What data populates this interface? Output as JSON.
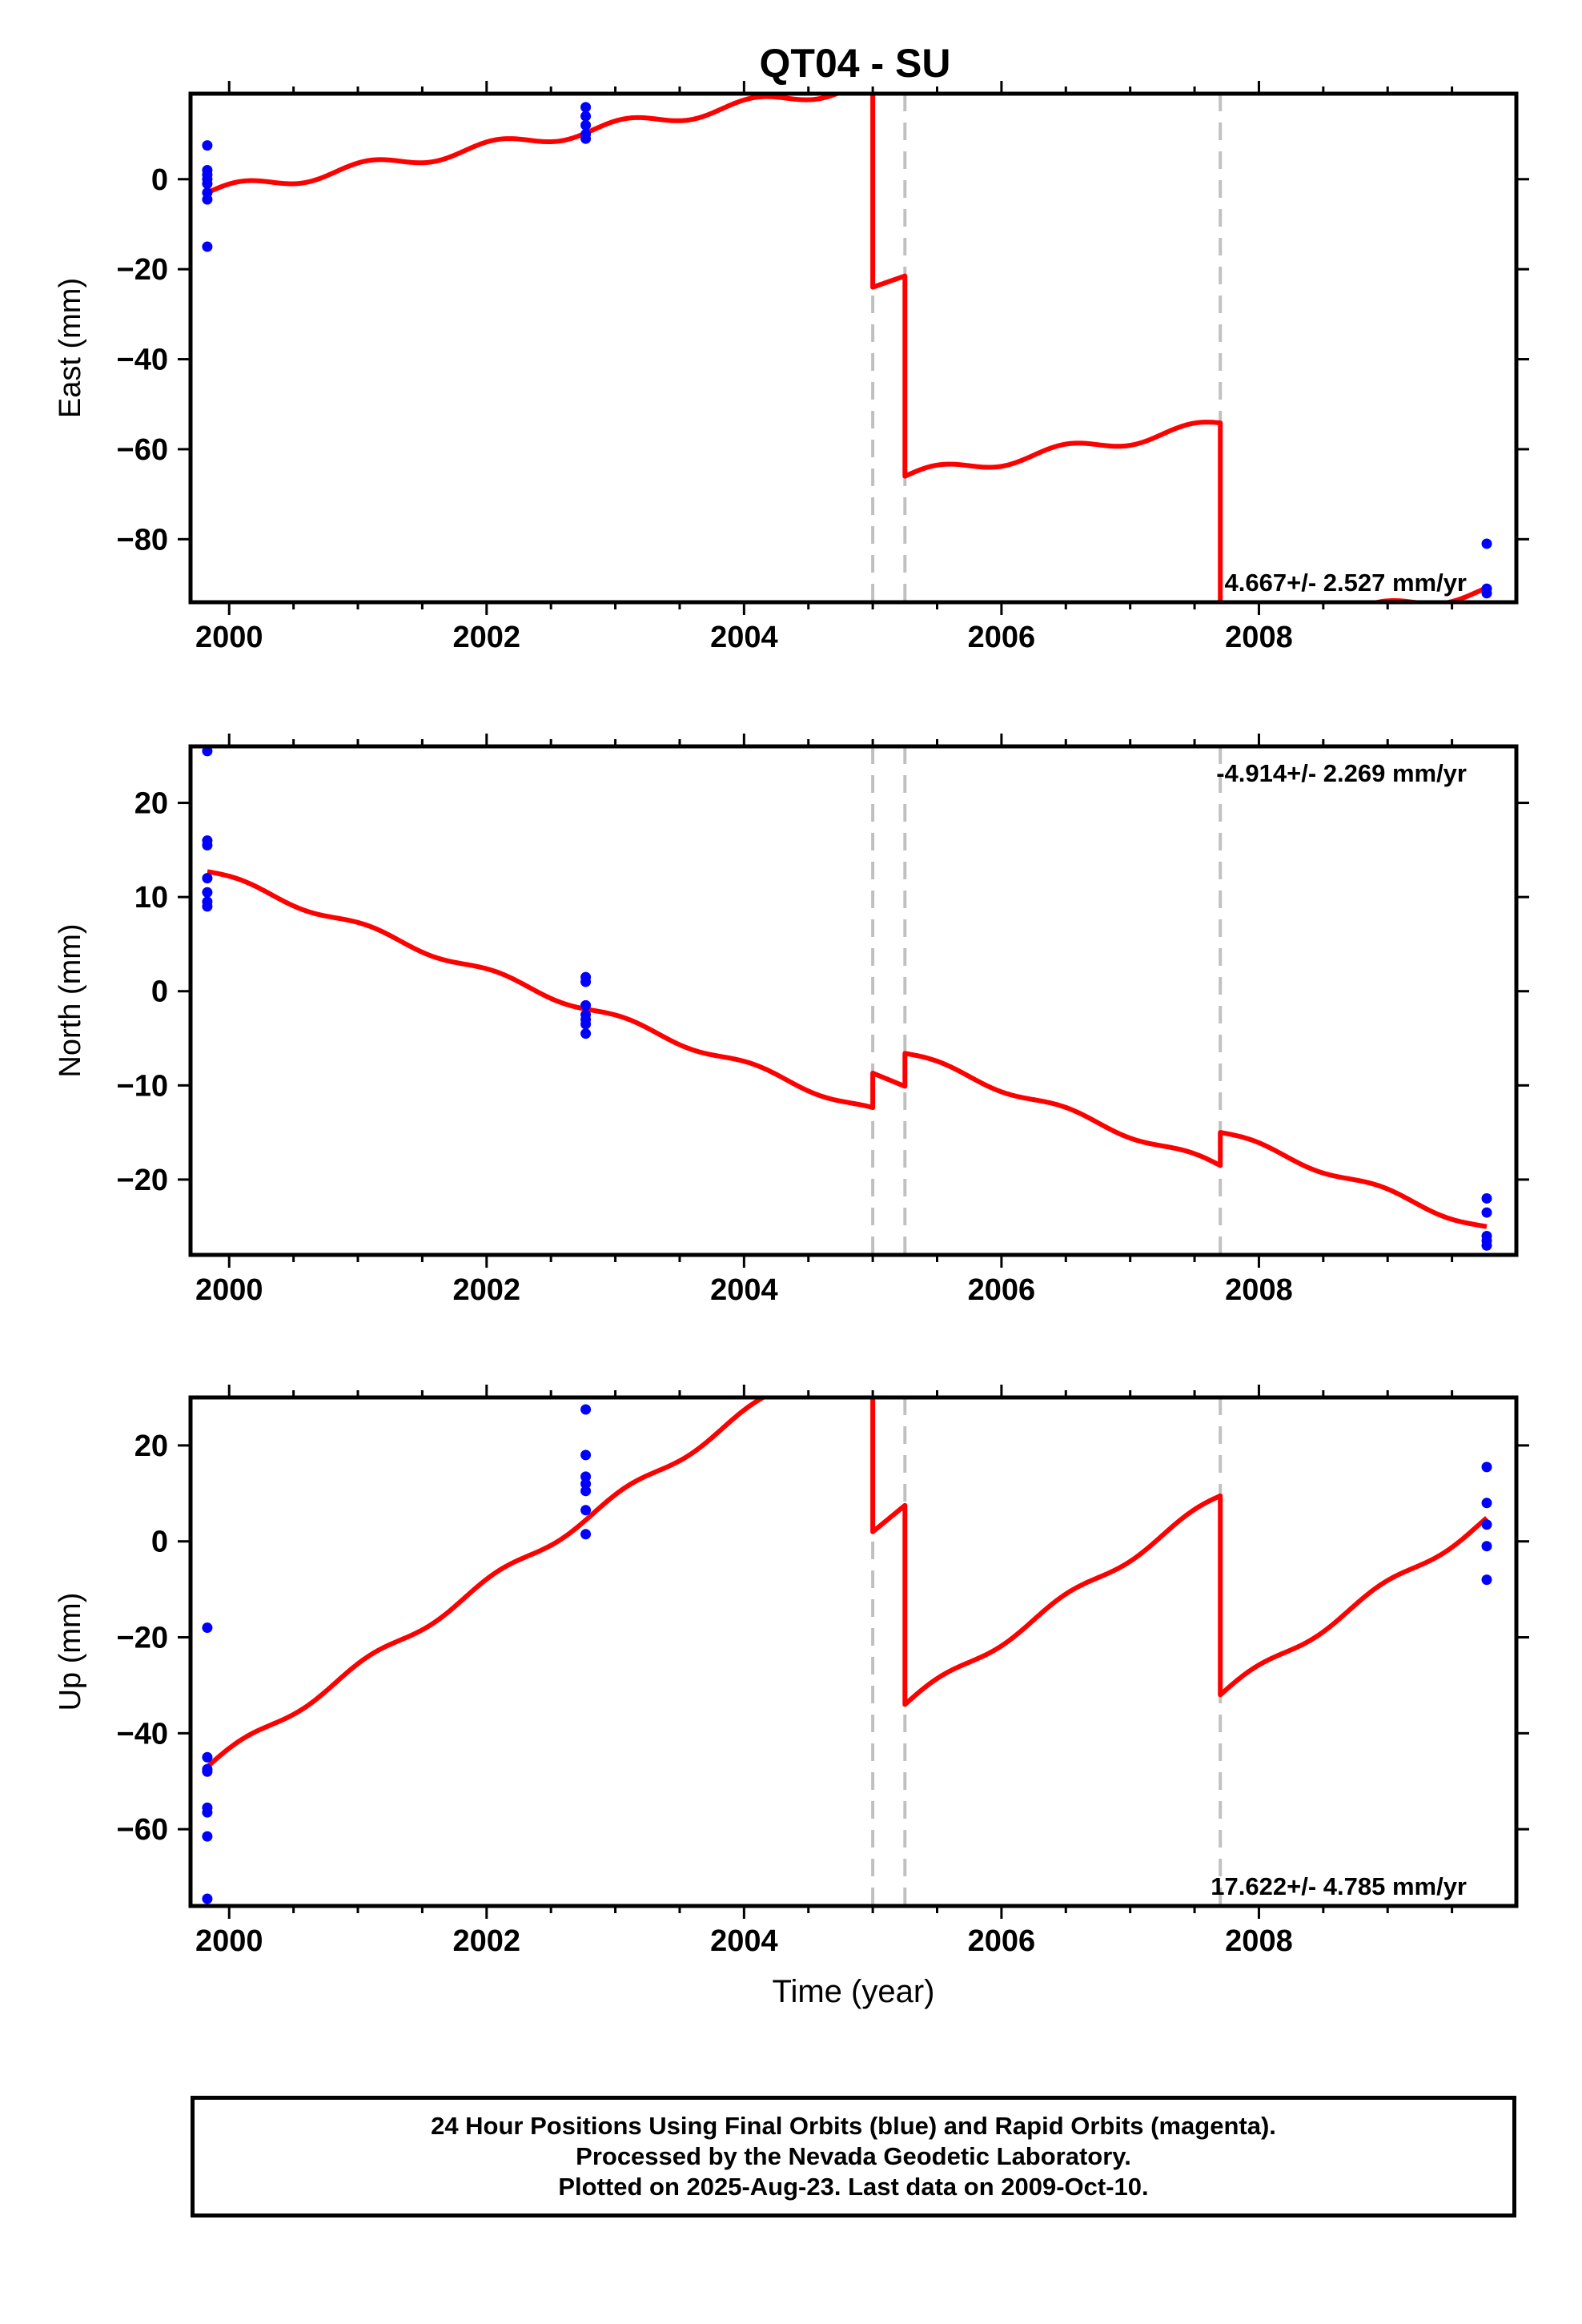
{
  "title": "QT04 - SU",
  "footer": {
    "line1": "24 Hour Positions Using Final Orbits (blue) and Rapid Orbits (magenta).",
    "line2": "Processed by the Nevada Geodetic Laboratory.",
    "line3": "Plotted on 2025-Aug-23. Last data on 2009-Oct-10."
  },
  "colors": {
    "data": "#0000ff",
    "model": "#ff0000",
    "events": "#c0c0c0",
    "axes": "#000000"
  },
  "chart_data": [
    {
      "type": "scatter",
      "panel": "east",
      "ylabel": "East (mm)",
      "xlabel": "",
      "xlim": [
        1999.7,
        2010.0
      ],
      "ylim": [
        -94,
        19
      ],
      "xticks": [
        2000,
        2002,
        2004,
        2006,
        2008
      ],
      "xtick_labels": [
        "2000",
        "2002",
        "2004",
        "2006",
        "2008"
      ],
      "yticks": [
        -80,
        -60,
        -40,
        -20,
        0
      ],
      "ytick_labels": [
        "−80",
        "−60",
        "−40",
        "−20",
        "0"
      ],
      "rate_label": "4.667+/- 2.527 mm/yr",
      "rate_label_position": "bottom-right",
      "event_lines": [
        2005.0,
        2005.25,
        2007.7
      ],
      "series": [
        {
          "kind": "points",
          "x": [
            1999.83,
            1999.83,
            1999.83,
            1999.83,
            1999.83,
            1999.83,
            1999.83,
            1999.83
          ],
          "y": [
            7.5,
            2,
            1,
            0,
            -1,
            -3,
            -4.5,
            -15
          ]
        },
        {
          "kind": "points",
          "x": [
            2002.77,
            2002.77,
            2002.77,
            2002.77,
            2002.77
          ],
          "y": [
            16,
            14,
            12,
            10,
            9
          ]
        },
        {
          "kind": "points",
          "x": [
            2009.77,
            2009.77,
            2009.77
          ],
          "y": [
            -81,
            -91,
            -92
          ]
        },
        {
          "kind": "model",
          "segments": [
            {
              "x0": 1999.83,
              "x1": 2005.0,
              "y0": -3.0,
              "slope": 4.667,
              "amp": 1.3
            },
            {
              "x0": 2005.0,
              "x1": 2005.25,
              "y0": -24.0,
              "slope": 10.0,
              "amp": 0
            },
            {
              "x0": 2005.25,
              "x1": 2007.7,
              "y0": -66.0,
              "slope": 4.667,
              "amp": 1.3
            },
            {
              "x0": 2007.7,
              "x1": 2009.77,
              "y0": -101.0,
              "slope": 4.667,
              "amp": 1.3
            }
          ],
          "jumps": [
            2005.0,
            2005.25,
            2007.7
          ]
        }
      ]
    },
    {
      "type": "scatter",
      "panel": "north",
      "ylabel": "North (mm)",
      "xlabel": "",
      "xlim": [
        1999.7,
        2010.0
      ],
      "ylim": [
        -28,
        26
      ],
      "xticks": [
        2000,
        2002,
        2004,
        2006,
        2008
      ],
      "xtick_labels": [
        "2000",
        "2002",
        "2004",
        "2006",
        "2008"
      ],
      "yticks": [
        -20,
        -10,
        0,
        10,
        20
      ],
      "ytick_labels": [
        "−20",
        "−10",
        "0",
        "10",
        "20"
      ],
      "rate_label": "-4.914+/- 2.269 mm/yr",
      "rate_label_position": "top-right",
      "event_lines": [
        2005.0,
        2005.25,
        2007.7
      ],
      "series": [
        {
          "kind": "points",
          "x": [
            1999.83,
            1999.83,
            1999.83,
            1999.83,
            1999.83,
            1999.83,
            1999.83
          ],
          "y": [
            25.5,
            16,
            15.5,
            12,
            10.5,
            9.5,
            9
          ]
        },
        {
          "kind": "points",
          "x": [
            2002.77,
            2002.77,
            2002.77,
            2002.77,
            2002.77,
            2002.77,
            2002.77
          ],
          "y": [
            1.5,
            1,
            -1.5,
            -2.5,
            -3,
            -3.5,
            -4.5
          ]
        },
        {
          "kind": "points",
          "x": [
            2009.77,
            2009.77,
            2009.77,
            2009.77,
            2009.77
          ],
          "y": [
            -22,
            -23.5,
            -26,
            -26.5,
            -27
          ]
        },
        {
          "kind": "model",
          "segments": [
            {
              "x0": 1999.83,
              "x1": 2005.0,
              "y0": 12.7,
              "slope": -4.914,
              "amp": 0.4
            },
            {
              "x0": 2005.0,
              "x1": 2005.25,
              "y0": -8.7,
              "slope": -5.6,
              "amp": 0
            },
            {
              "x0": 2005.25,
              "x1": 2007.7,
              "y0": -6.6,
              "slope": -4.914,
              "amp": 0.4
            },
            {
              "x0": 2007.7,
              "x1": 2009.77,
              "y0": -15.0,
              "slope": -4.914,
              "amp": 0.4
            }
          ],
          "jumps": [
            2005.0,
            2005.25,
            2007.7
          ]
        }
      ]
    },
    {
      "type": "scatter",
      "panel": "up",
      "ylabel": "Up (mm)",
      "xlabel": "Time (year)",
      "xlim": [
        1999.7,
        2010.0
      ],
      "ylim": [
        -76,
        30
      ],
      "xticks": [
        2000,
        2002,
        2004,
        2006,
        2008
      ],
      "xtick_labels": [
        "2000",
        "2002",
        "2004",
        "2006",
        "2008"
      ],
      "yticks": [
        -60,
        -40,
        -20,
        0,
        20
      ],
      "ytick_labels": [
        "−60",
        "−40",
        "−20",
        "0",
        "20"
      ],
      "rate_label": "17.622+/- 4.785 mm/yr",
      "rate_label_position": "bottom-right",
      "event_lines": [
        2005.0,
        2005.25,
        2007.7
      ],
      "series": [
        {
          "kind": "points",
          "x": [
            1999.83,
            1999.83,
            1999.83,
            1999.83,
            1999.83,
            1999.83,
            1999.83,
            1999.83
          ],
          "y": [
            -18,
            -45,
            -47.5,
            -55.5,
            -56.5,
            -61.5,
            -74.5,
            -48
          ]
        },
        {
          "kind": "points",
          "x": [
            2002.77,
            2002.77,
            2002.77,
            2002.77,
            2002.77,
            2002.77,
            2002.77
          ],
          "y": [
            27.5,
            18,
            13.5,
            12,
            10.5,
            6.5,
            1.5
          ]
        },
        {
          "kind": "points",
          "x": [
            2009.77,
            2009.77,
            2009.77,
            2009.77,
            2009.77
          ],
          "y": [
            15.5,
            8,
            3.5,
            -1,
            -8
          ]
        },
        {
          "kind": "model",
          "segments": [
            {
              "x0": 1999.83,
              "x1": 2005.0,
              "y0": -47.0,
              "slope": 17.622,
              "amp": 1.0
            },
            {
              "x0": 2005.0,
              "x1": 2005.25,
              "y0": 2.0,
              "slope": 22.0,
              "amp": 0
            },
            {
              "x0": 2005.25,
              "x1": 2007.7,
              "y0": -34.0,
              "slope": 17.622,
              "amp": 1.0
            },
            {
              "x0": 2007.7,
              "x1": 2009.77,
              "y0": -32.0,
              "slope": 17.622,
              "amp": 1.0
            }
          ],
          "jumps": [
            2005.0,
            2005.25,
            2007.7
          ]
        }
      ]
    }
  ]
}
